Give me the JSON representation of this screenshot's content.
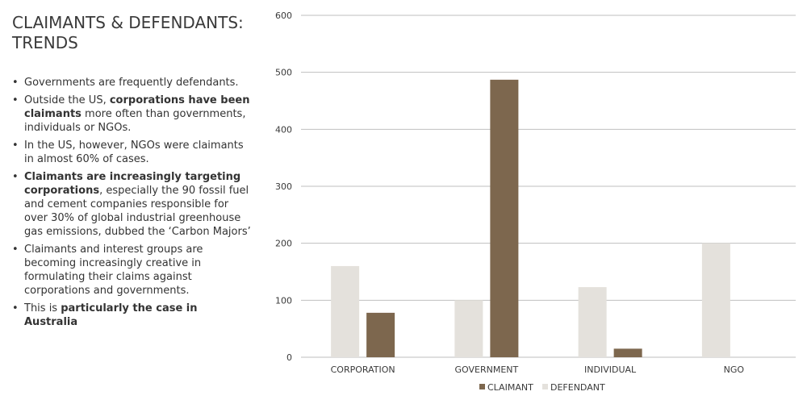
{
  "slide": {
    "title_line1": "CLAIMANTS & DEFENDANTS:",
    "title_line2": "TRENDS",
    "bullets": [
      {
        "parts": [
          {
            "text": "Governments are frequently defendants."
          }
        ]
      },
      {
        "parts": [
          {
            "text": "Outside the US, "
          },
          {
            "text": "corporations have been claimants",
            "bold": true
          },
          {
            "text": " more often than governments, individuals or NGOs."
          }
        ]
      },
      {
        "parts": [
          {
            "text": "In the US, however, NGOs were claimants in almost 60% of cases."
          }
        ]
      },
      {
        "parts": [
          {
            "text": "Claimants are increasingly targeting corporations",
            "bold": true
          },
          {
            "text": ", especially the 90 fossil fuel and cement companies responsible for over 30% of global industrial greenhouse gas emissions, dubbed the ‘Carbon Majors’"
          }
        ]
      },
      {
        "parts": [
          {
            "text": "Claimants and interest groups are becoming increasingly creative in formulating their claims against corporations and governments."
          }
        ]
      },
      {
        "parts": [
          {
            "text": "This is "
          },
          {
            "text": "particularly the case in Australia",
            "bold": true
          }
        ]
      }
    ]
  },
  "chart_data": {
    "type": "bar",
    "categories": [
      "CORPORATION",
      "GOVERNMENT",
      "INDIVIDUAL",
      "NGO"
    ],
    "series": [
      {
        "name": "DEFENDANT",
        "color": "#e4e1dc",
        "values": [
          160,
          100,
          123,
          200
        ]
      },
      {
        "name": "CLAIMANT",
        "color": "#7d674e",
        "values": [
          78,
          487,
          15,
          0
        ]
      }
    ],
    "legend_order": [
      "CLAIMANT",
      "DEFENDANT"
    ],
    "ylim": [
      0,
      600
    ],
    "yticks": [
      0,
      100,
      200,
      300,
      400,
      500,
      600
    ],
    "grid": true,
    "legend_position": "bottom"
  }
}
